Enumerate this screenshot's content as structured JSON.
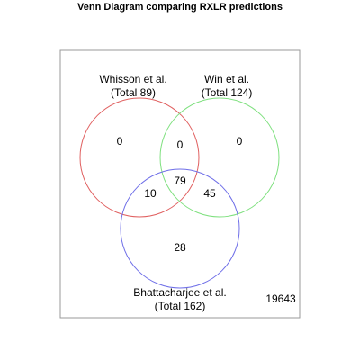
{
  "title": "Venn Diagram comparing RXLR predictions",
  "sets": [
    {
      "name": "Whisson et al.",
      "total_label": "(Total 89)",
      "color": "#e06060"
    },
    {
      "name": "Win et al.",
      "total_label": "(Total 124)",
      "color": "#7fe07f"
    },
    {
      "name": "Bhattacharjee et al.",
      "total_label": "(Total 162)",
      "color": "#6f6fe8"
    }
  ],
  "regions": {
    "whisson_only": "0",
    "win_only": "0",
    "whisson_win": "0",
    "all_three": "79",
    "whisson_bhattacharjee": "10",
    "win_bhattacharjee": "45",
    "bhattacharjee_only": "28"
  },
  "outside_count": "19643",
  "colors": {
    "frame": "#9a9a9a"
  }
}
